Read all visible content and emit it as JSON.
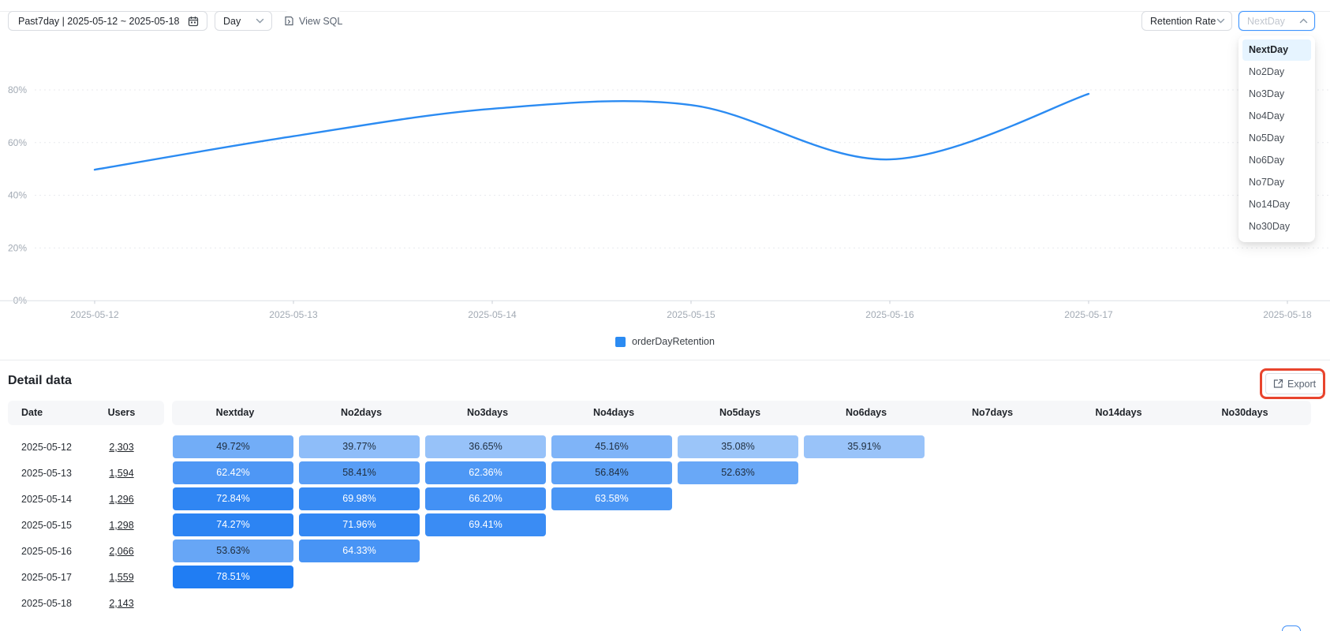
{
  "toolbar": {
    "date_range": "Past7day | 2025-05-12 ~ 2025-05-18",
    "granularity": "Day",
    "view_sql": "View SQL",
    "metric_select": "Retention Rate",
    "period_select": "NextDay",
    "period_selected": "NextDay",
    "period_options": [
      "NextDay",
      "No2Day",
      "No3Day",
      "No4Day",
      "No5Day",
      "No6Day",
      "No7Day",
      "No14Day",
      "No30Day"
    ]
  },
  "chart_data": {
    "type": "line",
    "smooth": true,
    "x": [
      "2025-05-12",
      "2025-05-13",
      "2025-05-14",
      "2025-05-15",
      "2025-05-16",
      "2025-05-17",
      "2025-05-18"
    ],
    "series": [
      {
        "name": "orderDayRetention",
        "values": [
          49.72,
          62.42,
          72.84,
          74.27,
          53.63,
          78.51,
          null
        ]
      }
    ],
    "ylabel": "",
    "xlabel": "",
    "ylim": [
      0,
      85
    ],
    "yticks": [
      0,
      20,
      40,
      60,
      80
    ],
    "ytick_labels": [
      "0%",
      "20%",
      "40%",
      "60%",
      "80%"
    ],
    "grid": true,
    "legend_position": "bottom",
    "line_color": "#2b8bf2"
  },
  "detail": {
    "title": "Detail data",
    "export_label": "Export",
    "columns": [
      "Date",
      "Users",
      "Nextday",
      "No2days",
      "No3days",
      "No4days",
      "No5days",
      "No6days",
      "No7days",
      "No14days",
      "No30days"
    ],
    "rows": [
      {
        "date": "2025-05-12",
        "users": "2,303",
        "values": [
          49.72,
          39.77,
          36.65,
          45.16,
          35.08,
          35.91
        ]
      },
      {
        "date": "2025-05-13",
        "users": "1,594",
        "values": [
          62.42,
          58.41,
          62.36,
          56.84,
          52.63
        ]
      },
      {
        "date": "2025-05-14",
        "users": "1,296",
        "values": [
          72.84,
          69.98,
          66.2,
          63.58
        ]
      },
      {
        "date": "2025-05-15",
        "users": "1,298",
        "values": [
          74.27,
          71.96,
          69.41
        ]
      },
      {
        "date": "2025-05-16",
        "users": "2,066",
        "values": [
          53.63,
          64.33
        ]
      },
      {
        "date": "2025-05-17",
        "users": "1,559",
        "values": [
          78.51
        ]
      },
      {
        "date": "2025-05-18",
        "users": "2,143",
        "values": []
      }
    ]
  },
  "colors": {
    "accent_blue": "#2b8bf2",
    "cell_base_blue": "#1677f2",
    "focus_border": "#4096ff",
    "selected_option_bg": "#e6f4ff",
    "highlight_annotation": "#e8442d",
    "axis_label": "#a2aab4"
  }
}
